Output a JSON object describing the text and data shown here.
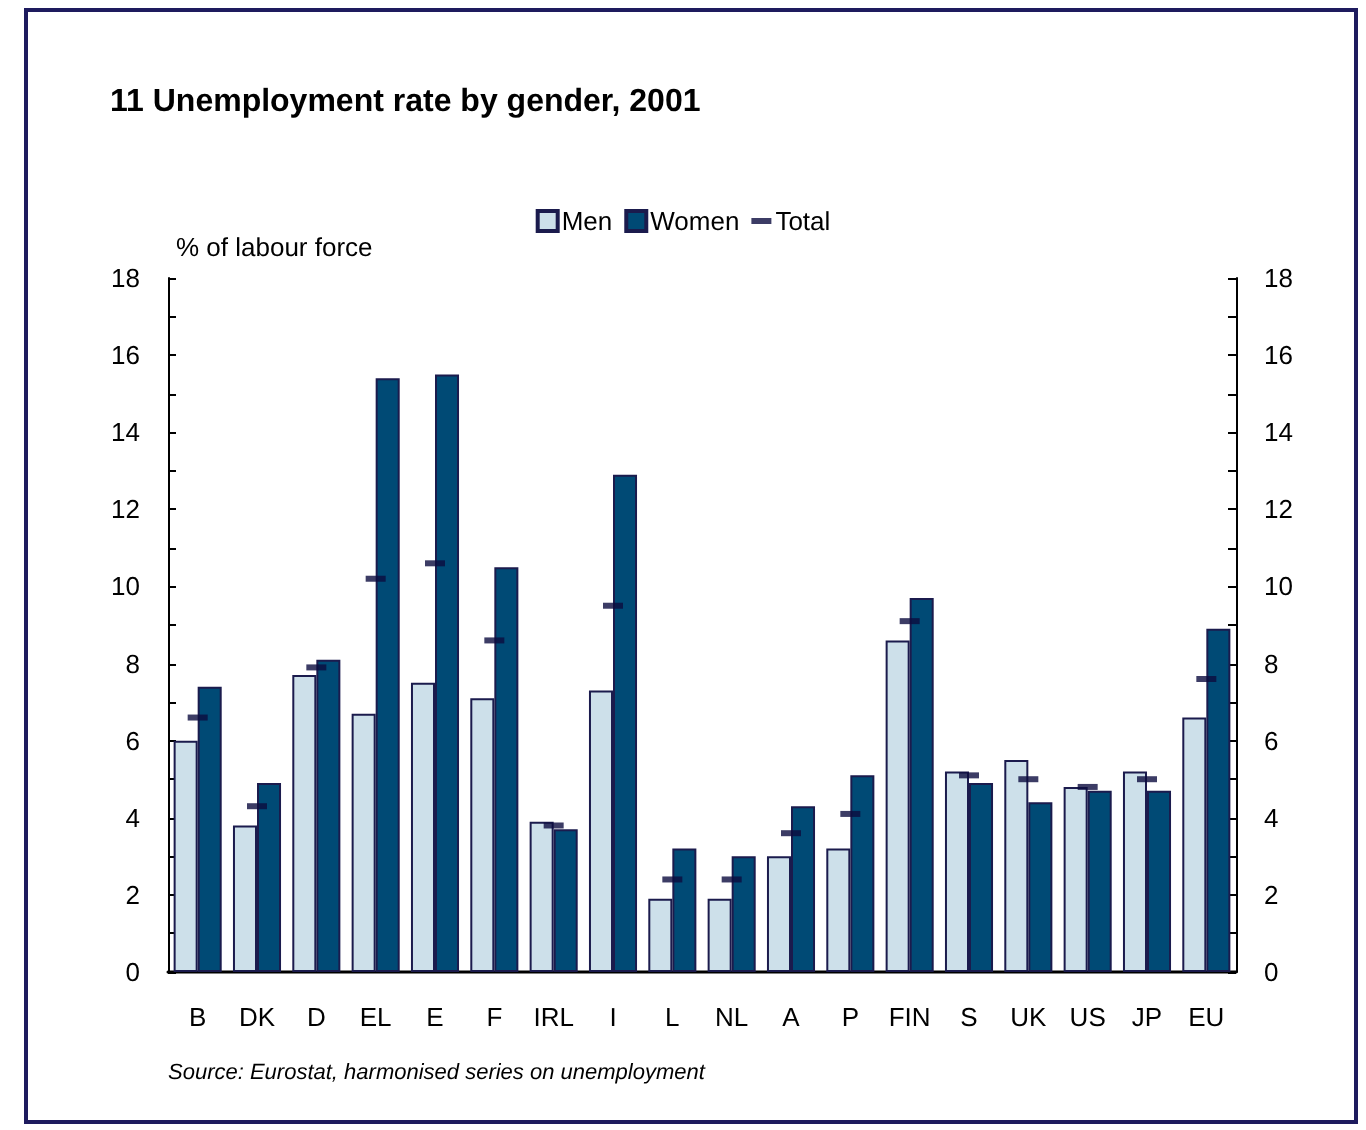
{
  "chart_data": {
    "type": "bar",
    "title": "11 Unemployment rate by gender, 2001",
    "ylabel": "% of labour force",
    "categories": [
      "B",
      "DK",
      "D",
      "EL",
      "E",
      "F",
      "IRL",
      "I",
      "L",
      "NL",
      "A",
      "P",
      "FIN",
      "S",
      "UK",
      "US",
      "JP",
      "EU"
    ],
    "series": [
      {
        "name": "Men",
        "color": "#cde0ea",
        "values": [
          6.0,
          3.8,
          7.7,
          6.7,
          7.5,
          7.1,
          3.9,
          7.3,
          1.9,
          1.9,
          3.0,
          3.2,
          8.6,
          5.2,
          5.5,
          4.8,
          5.2,
          6.6
        ]
      },
      {
        "name": "Women",
        "color": "#004a75",
        "values": [
          7.4,
          4.9,
          8.1,
          15.4,
          15.5,
          10.5,
          3.7,
          12.9,
          3.2,
          3.0,
          4.3,
          5.1,
          9.7,
          4.9,
          4.4,
          4.7,
          4.7,
          8.9
        ]
      },
      {
        "name": "Total",
        "type": "scatter",
        "color": "#0b0b3f",
        "values": [
          6.6,
          4.3,
          7.9,
          10.2,
          10.6,
          8.6,
          3.8,
          9.5,
          2.4,
          2.4,
          3.6,
          4.1,
          9.1,
          5.1,
          5.0,
          4.8,
          5.0,
          7.6
        ]
      }
    ],
    "ylim": [
      0,
      18
    ],
    "yticks": [
      0,
      {
        "value": 1,
        "label": null
      },
      2,
      {
        "value": 3,
        "label": null
      },
      4,
      {
        "value": 5,
        "label": null
      },
      6,
      {
        "value": 7,
        "label": null
      },
      8,
      {
        "value": 9,
        "label": null
      },
      10,
      {
        "value": 11,
        "label": null
      },
      12,
      {
        "value": 13,
        "label": null
      },
      14,
      {
        "value": 15,
        "label": null
      },
      16,
      {
        "value": 17,
        "label": null
      },
      18
    ],
    "y2lim": [
      0,
      18
    ],
    "y2ticks": [
      0,
      {
        "value": 1,
        "label": null
      },
      2,
      {
        "value": 3,
        "label": null
      },
      4,
      {
        "value": 5,
        "label": null
      },
      6,
      {
        "value": 7,
        "label": null
      },
      8,
      {
        "value": 9,
        "label": null
      },
      10,
      {
        "value": 11,
        "label": null
      },
      12,
      {
        "value": 13,
        "label": null
      },
      14,
      {
        "value": 15,
        "label": null
      },
      16,
      {
        "value": 17,
        "label": null
      },
      18
    ],
    "legend": "top",
    "grid": false,
    "annotations": [
      "Source: Eurostat, harmonised series on unemployment"
    ]
  }
}
